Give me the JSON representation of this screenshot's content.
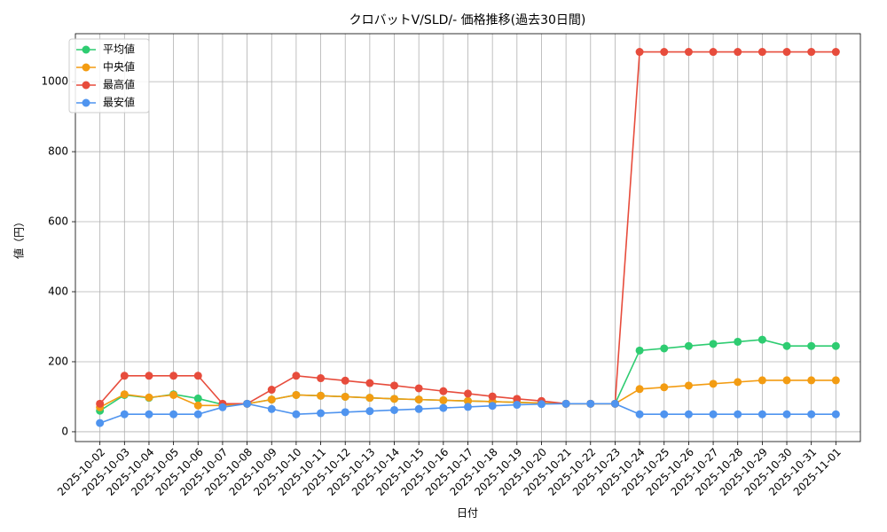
{
  "chart_data": {
    "type": "line",
    "title": "クロバットV/SLD/- 価格推移(過去30日間)",
    "x_label": "日付",
    "y_label": "値（円）",
    "categories": [
      "2025-10-02",
      "2025-10-03",
      "2025-10-04",
      "2025-10-05",
      "2025-10-06",
      "2025-10-07",
      "2025-10-08",
      "2025-10-09",
      "2025-10-10",
      "2025-10-11",
      "2025-10-12",
      "2025-10-13",
      "2025-10-14",
      "2025-10-15",
      "2025-10-16",
      "2025-10-17",
      "2025-10-18",
      "2025-10-19",
      "2025-10-20",
      "2025-10-21",
      "2025-10-22",
      "2025-10-23",
      "2025-10-24",
      "2025-10-25",
      "2025-10-26",
      "2025-10-27",
      "2025-10-28",
      "2025-10-29",
      "2025-10-30",
      "2025-10-31",
      "2025-11-01"
    ],
    "series": [
      {
        "name": "平均値",
        "color": "#2ecc71",
        "values": [
          60,
          105,
          97,
          107,
          95,
          78,
          80,
          92,
          105,
          103,
          100,
          97,
          94,
          92,
          90,
          88,
          86,
          84,
          82,
          80,
          80,
          80,
          232,
          238,
          245,
          251,
          257,
          263,
          245,
          245,
          245
        ]
      },
      {
        "name": "中央値",
        "color": "#f39c12",
        "values": [
          70,
          107,
          98,
          105,
          75,
          75,
          80,
          92,
          105,
          103,
          100,
          97,
          94,
          92,
          90,
          88,
          86,
          84,
          82,
          80,
          80,
          80,
          122,
          127,
          132,
          137,
          142,
          147,
          147,
          147,
          147
        ]
      },
      {
        "name": "最高値",
        "color": "#e74c3c",
        "values": [
          80,
          160,
          160,
          160,
          160,
          80,
          80,
          120,
          160,
          153,
          146,
          139,
          132,
          124,
          116,
          109,
          101,
          94,
          88,
          80,
          80,
          80,
          1085,
          1085,
          1085,
          1085,
          1085,
          1085,
          1085,
          1085,
          1085
        ]
      },
      {
        "name": "最安値",
        "color": "#4f94ef",
        "values": [
          25,
          50,
          50,
          50,
          50,
          70,
          80,
          65,
          50,
          53,
          56,
          59,
          62,
          65,
          68,
          71,
          74,
          77,
          79,
          80,
          80,
          80,
          50,
          50,
          50,
          50,
          50,
          50,
          50,
          50,
          50
        ]
      }
    ],
    "ylim": [
      -28,
      1137
    ],
    "yticks": [
      0,
      200,
      400,
      600,
      800,
      1000
    ],
    "grid": true,
    "legend": "upper-left"
  }
}
